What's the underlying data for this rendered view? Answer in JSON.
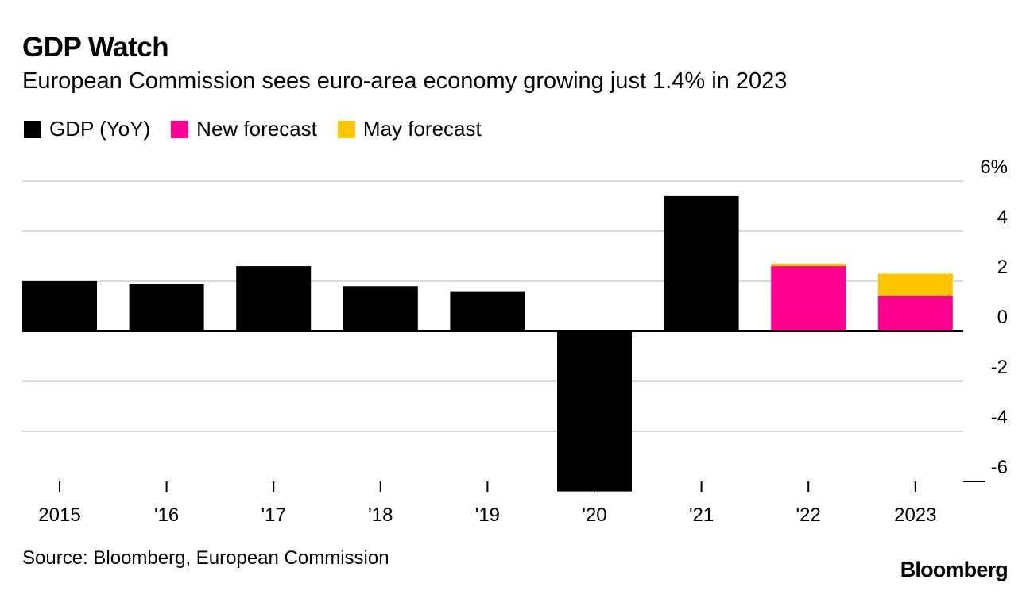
{
  "header": {
    "title": "GDP Watch",
    "subtitle": "European Commission sees euro-area economy growing just 1.4% in 2023"
  },
  "legend": [
    {
      "label": "GDP (YoY)",
      "color": "#000000"
    },
    {
      "label": "New forecast",
      "color": "#ff0090"
    },
    {
      "label": "May forecast",
      "color": "#ffc600"
    }
  ],
  "chart_data": {
    "type": "bar",
    "categories": [
      "2015",
      "'16",
      "'17",
      "'18",
      "'19",
      "'20",
      "'21",
      "'22",
      "2023"
    ],
    "series": [
      {
        "name": "GDP (YoY)",
        "color": "#000000",
        "values": [
          2.0,
          1.9,
          2.6,
          1.8,
          1.6,
          -6.4,
          5.4,
          null,
          null
        ]
      },
      {
        "name": "New forecast",
        "color": "#ff0090",
        "values": [
          null,
          null,
          null,
          null,
          null,
          null,
          null,
          2.6,
          1.4
        ]
      },
      {
        "name": "May forecast",
        "color": "#ffc600",
        "values": [
          null,
          null,
          null,
          null,
          null,
          null,
          null,
          2.7,
          2.3
        ]
      }
    ],
    "ylim": [
      -6,
      6
    ],
    "y_ticks": [
      6,
      4,
      2,
      0,
      -2,
      -4,
      -6
    ],
    "y_tick_labels": [
      "6%",
      "4",
      "2",
      "0",
      "-2",
      "-4",
      "-6"
    ],
    "y_axis_position": "right",
    "grid": true
  },
  "footer": {
    "source": "Source: Bloomberg, European Commission",
    "brand": "Bloomberg"
  }
}
